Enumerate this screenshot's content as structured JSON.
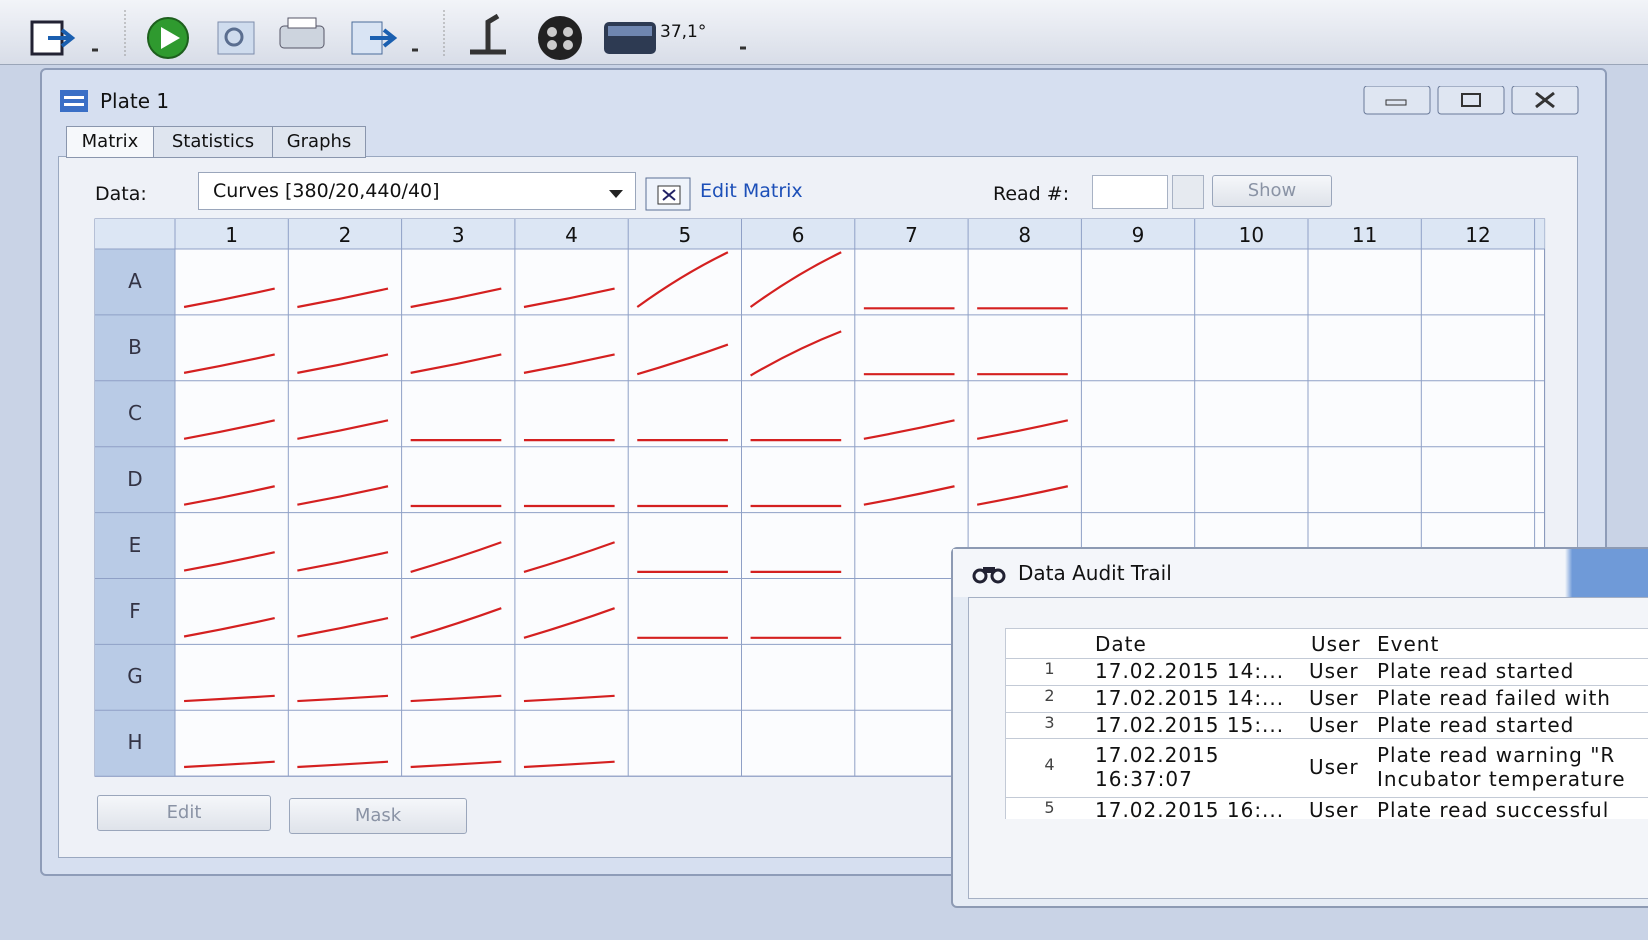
{
  "toolbar": {
    "temperature": "37,1°"
  },
  "plate_window": {
    "title": "Plate 1",
    "tabs": [
      "Matrix",
      "Statistics",
      "Graphs"
    ],
    "data_label": "Data:",
    "data_value": "Curves [380/20,440/40]",
    "edit_matrix": "Edit Matrix",
    "read_label": "Read #:",
    "show_button": "Show",
    "columns": [
      "1",
      "2",
      "3",
      "4",
      "5",
      "6",
      "7",
      "8",
      "9",
      "10",
      "11",
      "12"
    ],
    "rows": [
      "A",
      "B",
      "C",
      "D",
      "E",
      "F",
      "G",
      "H"
    ],
    "buttons": [
      "Edit",
      "Mask"
    ]
  },
  "audit_trail": {
    "title": "Data Audit Trail",
    "headers": [
      "Date",
      "User",
      "Event"
    ],
    "rows": [
      [
        "1",
        [
          "17.02.2015 14:..."
        ],
        "User",
        [
          "Plate read started"
        ]
      ],
      [
        "2",
        [
          "17.02.2015 14:..."
        ],
        "User",
        [
          "Plate read failed with"
        ]
      ],
      [
        "3",
        [
          "17.02.2015 15:..."
        ],
        "User",
        [
          "Plate read started"
        ]
      ],
      [
        "4",
        [
          "17.02.2015",
          "16:37:07"
        ],
        "User",
        [
          "Plate read warning \"R",
          "Incubator temperature"
        ]
      ],
      [
        "5",
        [
          "17.02.2015 16:..."
        ],
        "User",
        [
          "Plate read successful"
        ]
      ]
    ]
  }
}
